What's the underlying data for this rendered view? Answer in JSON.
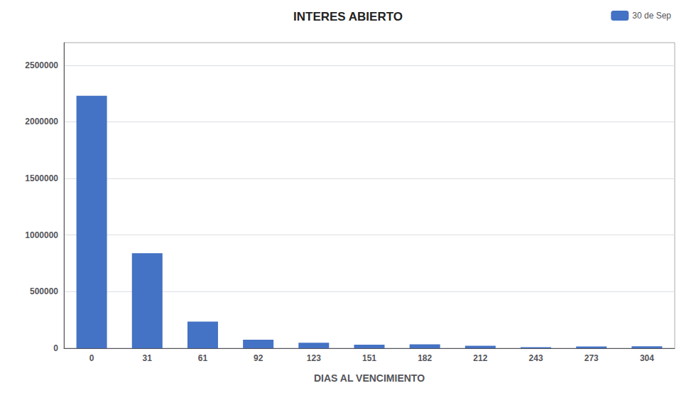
{
  "chart_data": {
    "type": "bar",
    "title": "INTERES ABIERTO",
    "xlabel": "DIAS AL VENCIMIENTO",
    "categories": [
      "0",
      "31",
      "61",
      "92",
      "123",
      "151",
      "182",
      "212",
      "243",
      "273",
      "304"
    ],
    "series": [
      {
        "name": "30 de Sep",
        "color": "#4472C4",
        "values": [
          2230000,
          840000,
          235000,
          75000,
          48000,
          32000,
          35000,
          22000,
          10000,
          15000,
          18000
        ]
      }
    ],
    "ylim": [
      0,
      2700000
    ],
    "yticks": [
      0,
      500000,
      1000000,
      1500000,
      2000000,
      2500000
    ],
    "grid": true,
    "legend": "upper right"
  }
}
